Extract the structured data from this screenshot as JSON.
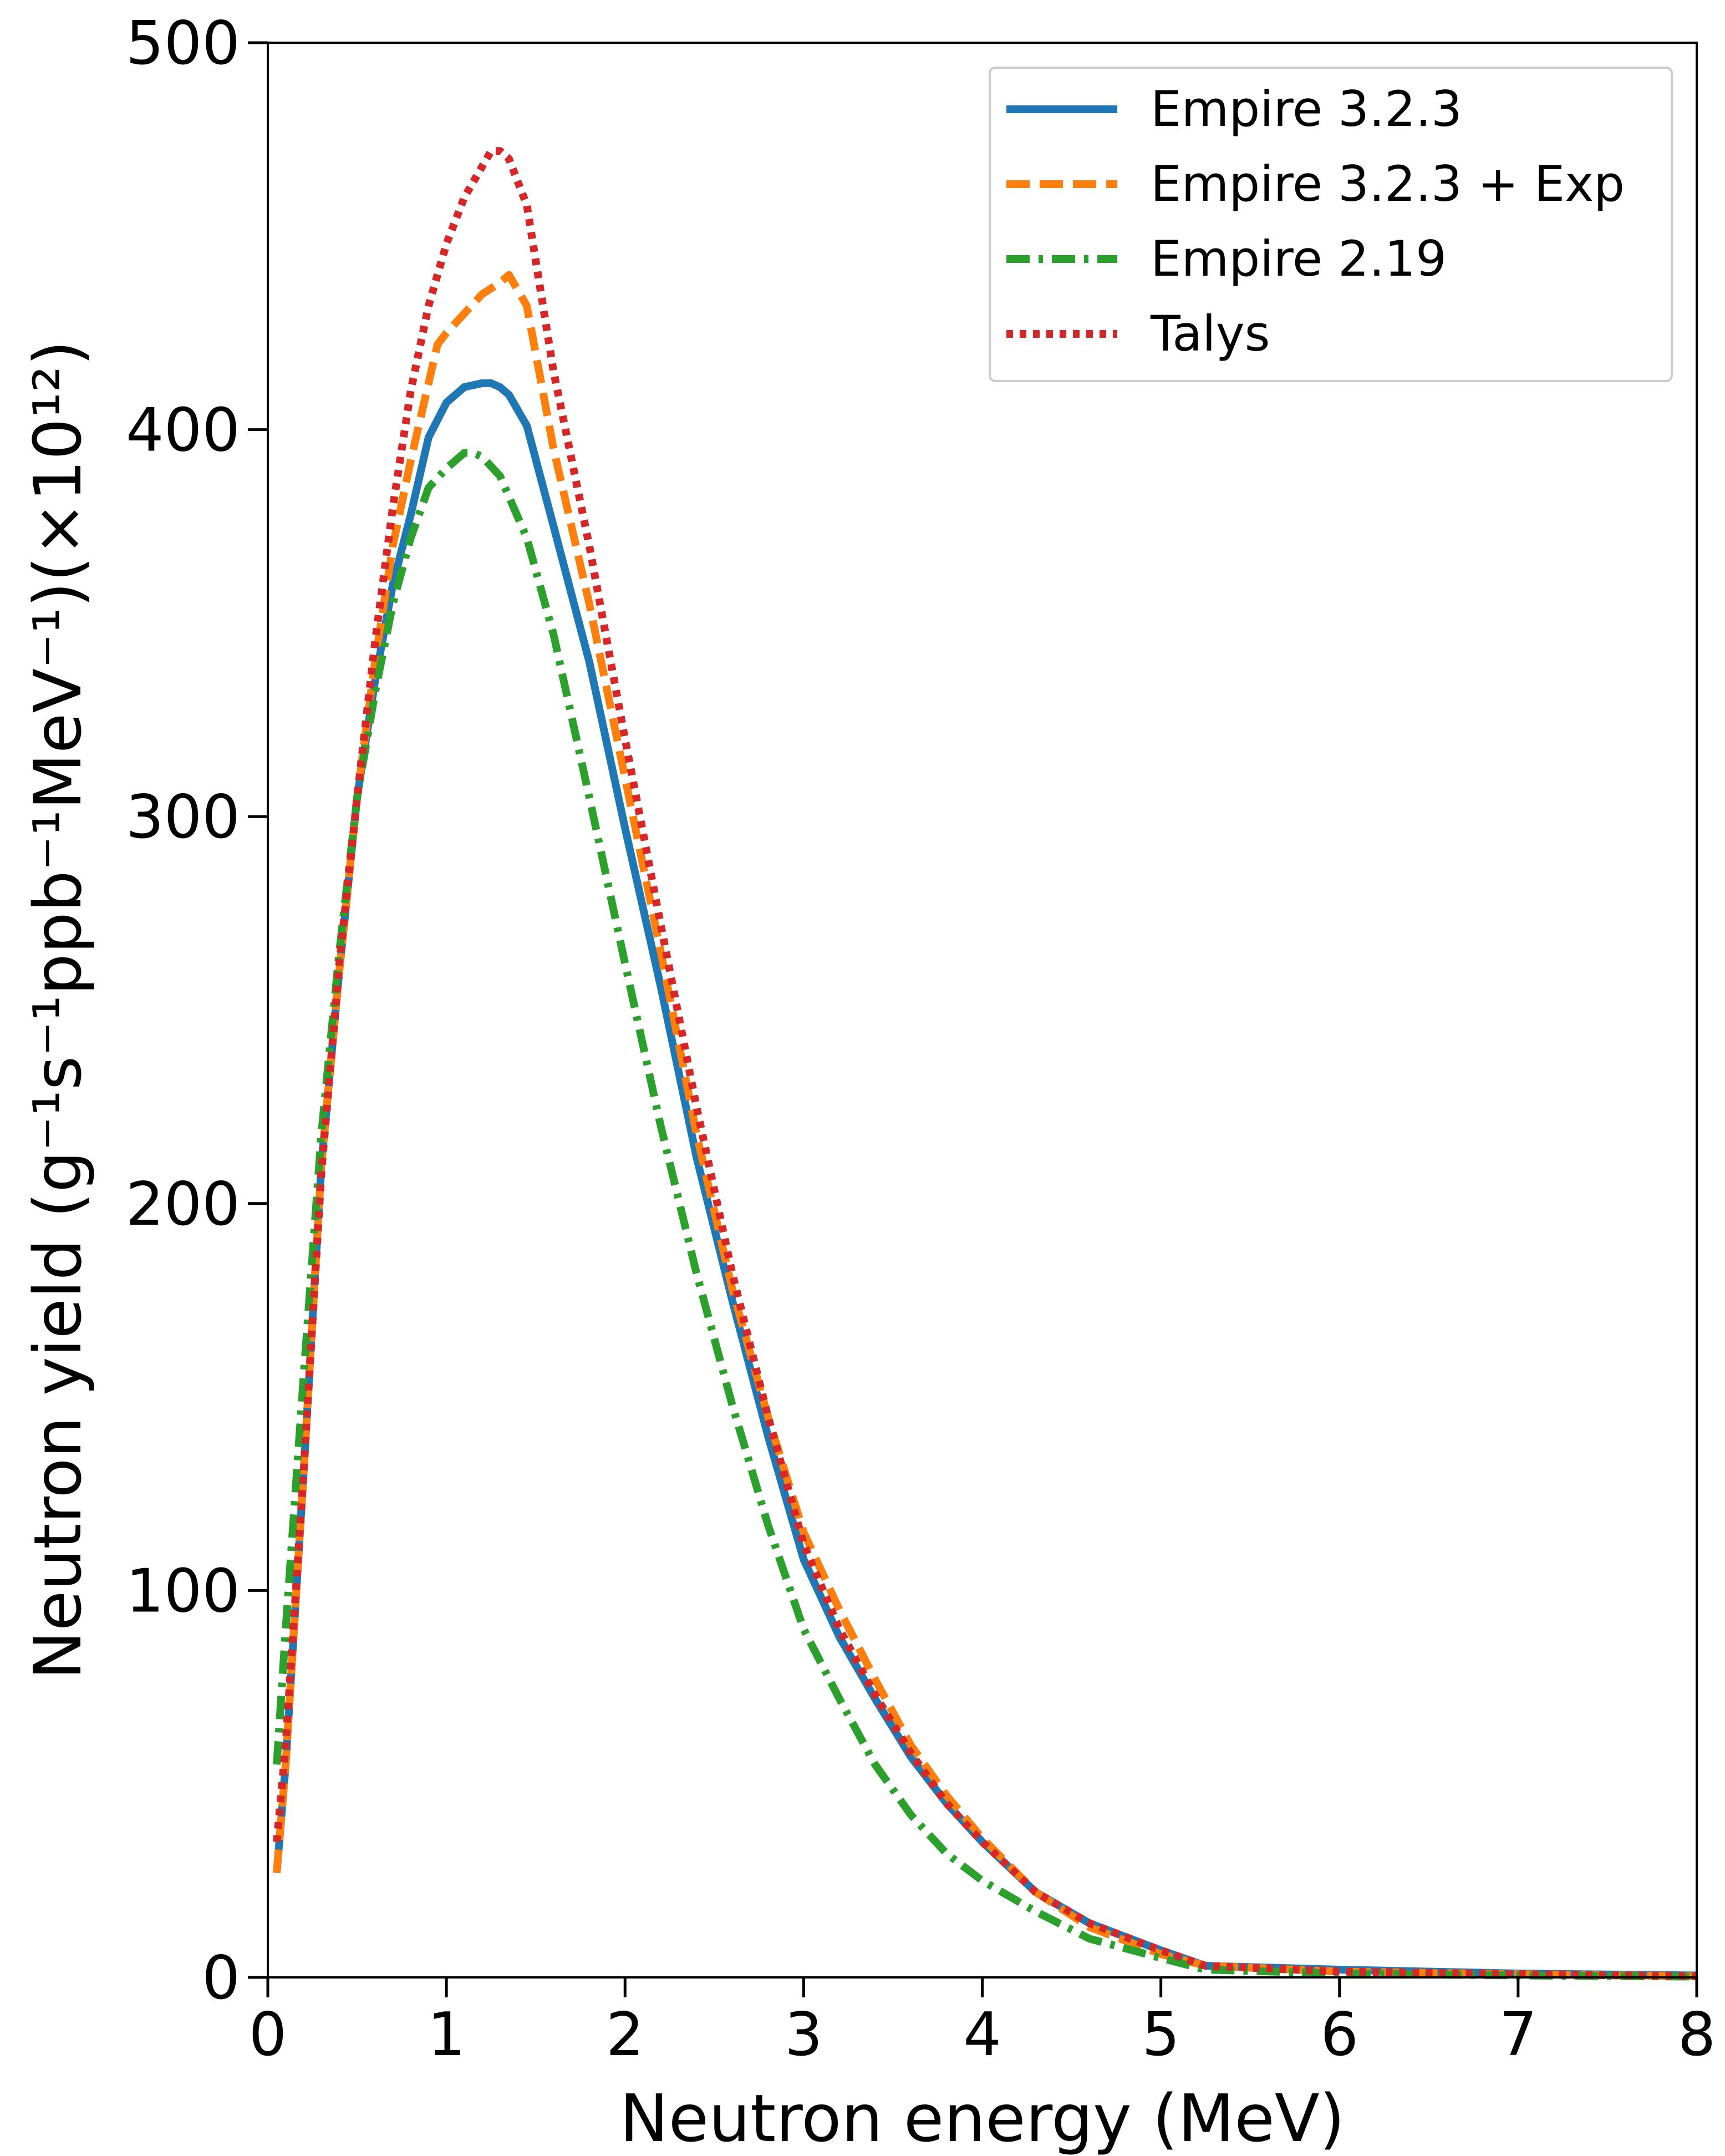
{
  "chart_data": {
    "type": "line",
    "title": "",
    "xlabel": "Neutron energy (MeV)",
    "ylabel": "Neutron yield (g⁻¹s⁻¹ppb⁻¹MeV⁻¹)(×10¹²)",
    "xlim": [
      0,
      8
    ],
    "ylim": [
      0,
      500
    ],
    "xticks": [
      "0",
      "1",
      "2",
      "3",
      "4",
      "5",
      "6",
      "7",
      "8"
    ],
    "yticks": [
      "0",
      "100",
      "200",
      "300",
      "400",
      "500"
    ],
    "grid": false,
    "legend_position": "top-right",
    "series": [
      {
        "name": "Empire 3.2.3",
        "color": "#1f77b4",
        "style": "solid",
        "x": [
          0.05,
          0.1,
          0.2,
          0.3,
          0.4,
          0.5,
          0.6,
          0.7,
          0.8,
          0.9,
          1.0,
          1.1,
          1.2,
          1.25,
          1.3,
          1.35,
          1.45,
          1.6,
          1.8,
          2.0,
          2.2,
          2.4,
          2.6,
          2.8,
          3.0,
          3.2,
          3.4,
          3.6,
          3.8,
          4.0,
          4.3,
          4.6,
          5.0,
          5.25,
          6.0,
          7.0,
          8.0
        ],
        "y": [
          27,
          55,
          130,
          210,
          260,
          305,
          335,
          360,
          378,
          398,
          407,
          411,
          412,
          412,
          411,
          409,
          401,
          375,
          340,
          297,
          256,
          212,
          175,
          140,
          108,
          88,
          72,
          57,
          45,
          35,
          22,
          14,
          7,
          3,
          2,
          1,
          0.5
        ]
      },
      {
        "name": "Empire 3.2.3 + Exp",
        "color": "#ff7f0e",
        "style": "dashed",
        "x": [
          0.05,
          0.1,
          0.2,
          0.3,
          0.4,
          0.5,
          0.6,
          0.7,
          0.8,
          0.9,
          0.95,
          1.0,
          1.1,
          1.2,
          1.3,
          1.35,
          1.45,
          1.6,
          1.8,
          2.0,
          2.2,
          2.4,
          2.6,
          2.8,
          3.0,
          3.2,
          3.4,
          3.6,
          3.8,
          4.0,
          4.3,
          4.6,
          5.0,
          5.25,
          6.0,
          7.0,
          8.0
        ],
        "y": [
          27,
          55,
          130,
          210,
          260,
          305,
          340,
          370,
          392,
          412,
          422,
          425,
          430,
          435,
          438,
          440,
          432,
          395,
          355,
          310,
          265,
          218,
          178,
          145,
          115,
          95,
          77,
          60,
          47,
          36,
          22,
          13,
          6,
          3,
          1.5,
          0.8,
          0.3
        ]
      },
      {
        "name": "Empire 2.19",
        "color": "#2ca02c",
        "style": "dashdot",
        "x": [
          0.05,
          0.1,
          0.2,
          0.3,
          0.4,
          0.5,
          0.6,
          0.7,
          0.8,
          0.9,
          1.0,
          1.1,
          1.15,
          1.2,
          1.3,
          1.45,
          1.6,
          1.8,
          2.0,
          2.2,
          2.4,
          2.6,
          2.8,
          3.0,
          3.2,
          3.4,
          3.6,
          3.8,
          4.0,
          4.3,
          4.6,
          5.0,
          5.25,
          6.0,
          7.0,
          8.0
        ],
        "y": [
          55,
          90,
          155,
          218,
          265,
          305,
          332,
          355,
          372,
          385,
          390,
          394,
          394,
          393,
          388,
          372,
          347,
          305,
          262,
          220,
          182,
          148,
          117,
          90,
          72,
          55,
          42,
          32,
          25,
          17,
          10,
          5,
          2,
          1,
          0.5,
          0.2
        ]
      },
      {
        "name": "Talys",
        "color": "#d62728",
        "style": "dotted",
        "x": [
          0.05,
          0.1,
          0.2,
          0.3,
          0.4,
          0.5,
          0.6,
          0.7,
          0.8,
          0.9,
          1.0,
          1.1,
          1.2,
          1.25,
          1.3,
          1.35,
          1.45,
          1.6,
          1.8,
          2.0,
          2.2,
          2.4,
          2.6,
          2.8,
          3.0,
          3.2,
          3.4,
          3.6,
          3.8,
          4.0,
          4.3,
          4.6,
          5.0,
          5.25,
          6.0,
          7.0,
          8.0
        ],
        "y": [
          35,
          60,
          130,
          208,
          262,
          305,
          345,
          380,
          410,
          432,
          448,
          460,
          468,
          472,
          472,
          470,
          458,
          415,
          370,
          320,
          272,
          225,
          182,
          145,
          112,
          90,
          73,
          58,
          45,
          35,
          22,
          14,
          7,
          3,
          1.5,
          0.8,
          0.3
        ]
      }
    ]
  }
}
